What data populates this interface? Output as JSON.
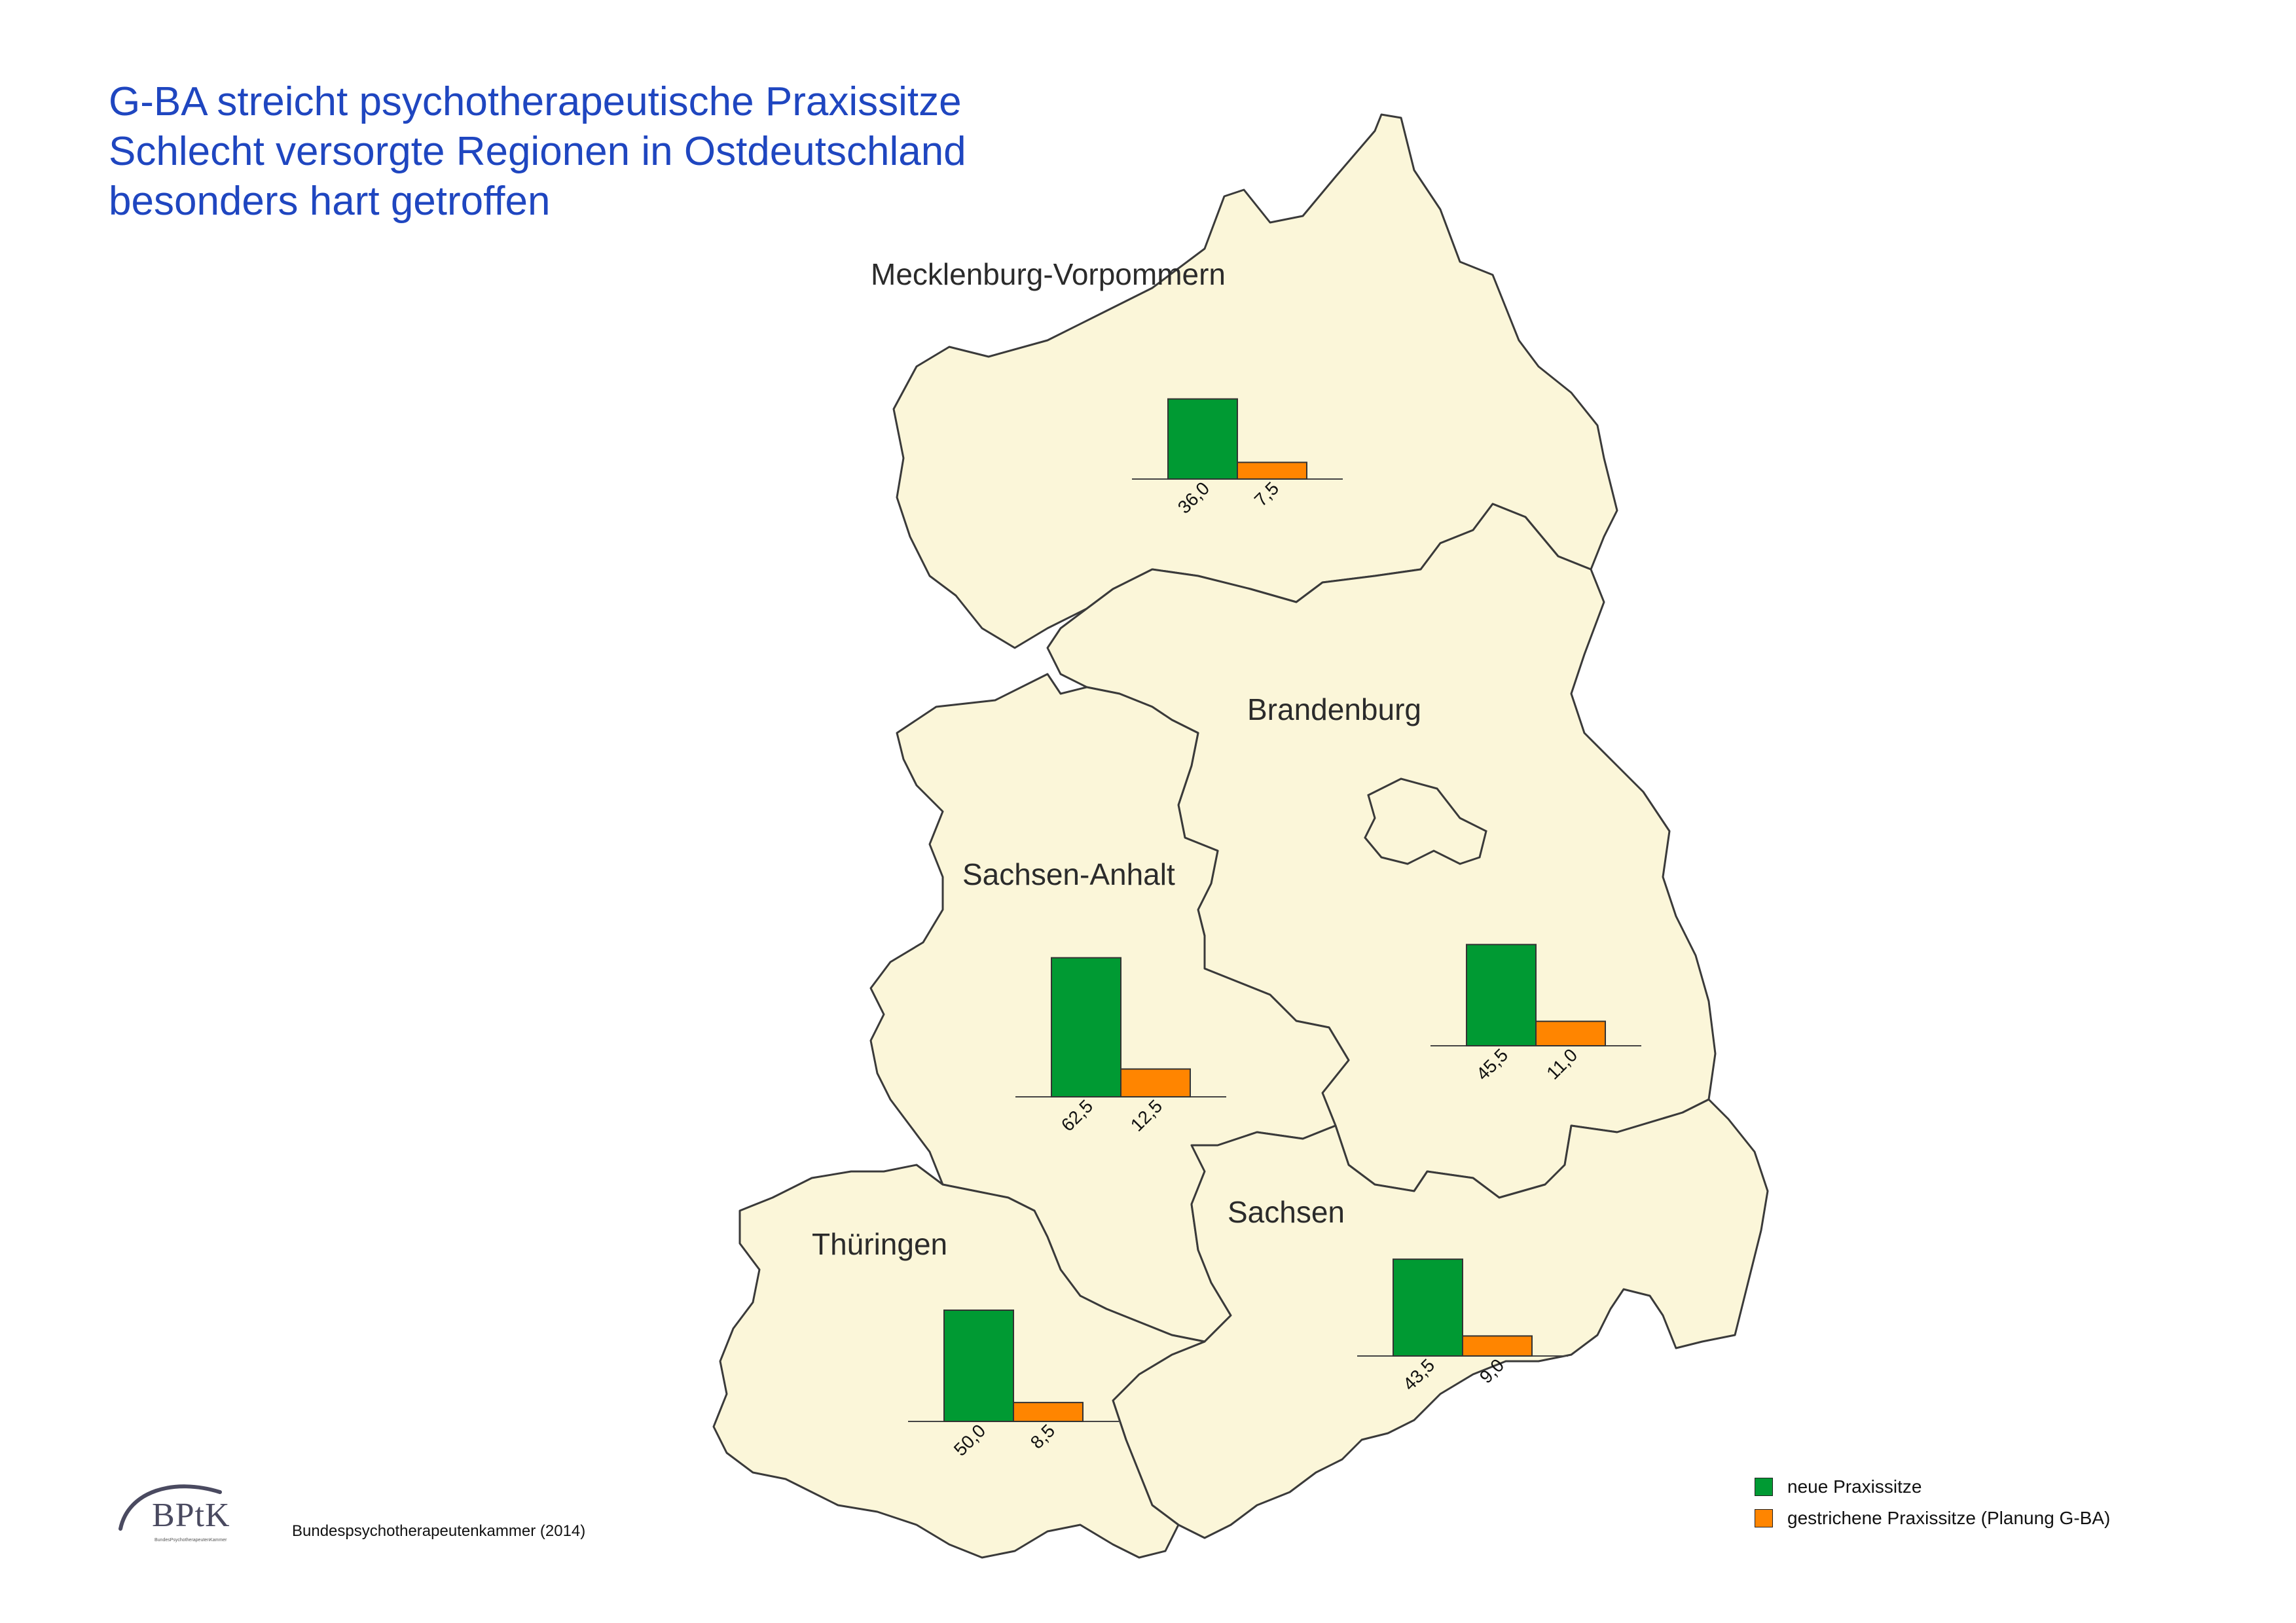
{
  "title_lines": [
    "G-BA streicht psychotherapeutische Praxissitze",
    "Schlecht versorgte Regionen in Ostdeutschland",
    "besonders hart getroffen"
  ],
  "colors": {
    "neue": "#009a33",
    "gestrichene": "#ff8500",
    "map_fill": "#fbf6d9",
    "title": "#1f46c0"
  },
  "legend": {
    "neue_label": "neue Praxissitze",
    "gestrichene_label": "gestrichene Praxissitze (Planung G-BA)"
  },
  "regions": [
    {
      "name": "Mecklenburg-Vorpommern",
      "neue": 36.0,
      "gestrichene": 7.5,
      "neue_label": "36,0",
      "gestrichene_label": "7,5"
    },
    {
      "name": "Brandenburg",
      "neue": 45.5,
      "gestrichene": 11.0,
      "neue_label": "45,5",
      "gestrichene_label": "11,0"
    },
    {
      "name": "Sachsen-Anhalt",
      "neue": 62.5,
      "gestrichene": 12.5,
      "neue_label": "62,5",
      "gestrichene_label": "12,5"
    },
    {
      "name": "Sachsen",
      "neue": 43.5,
      "gestrichene": 9.0,
      "neue_label": "43,5",
      "gestrichene_label": "9,0"
    },
    {
      "name": "Thüringen",
      "neue": 50.0,
      "gestrichene": 8.5,
      "neue_label": "50,0",
      "gestrichene_label": "8,5"
    }
  ],
  "logo": {
    "text": "BPtK",
    "subtext": "BundesPsychotherapeutenKammer"
  },
  "source": "Bundespsychotherapeutenkammer (2014)"
}
